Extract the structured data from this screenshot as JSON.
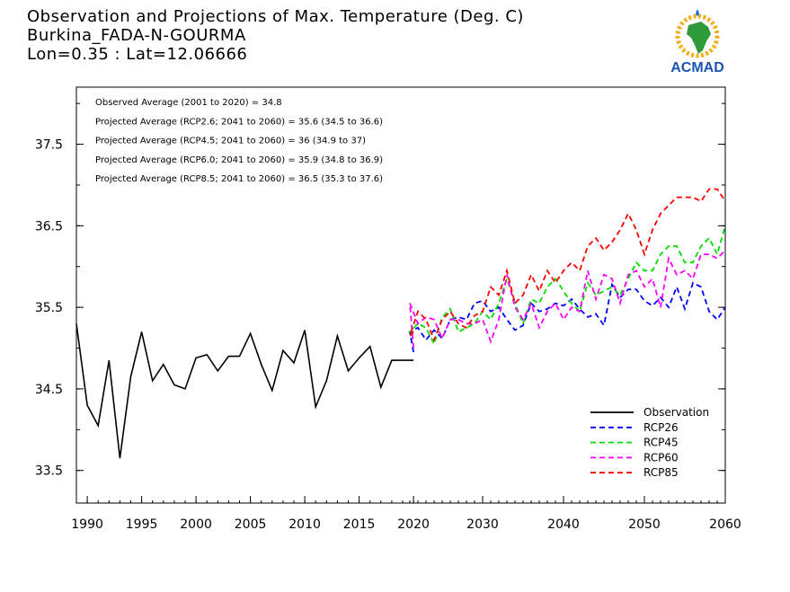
{
  "header": {
    "title_line1": "Observation and Projections of Max. Temperature (Deg. C)",
    "title_line2": "Burkina_FADA-N-GOURMA",
    "title_line3": "Lon=0.35 : Lat=12.06666"
  },
  "logo": {
    "text": "ACMAD",
    "icon": "africa-map-logo-icon"
  },
  "annotations": [
    "Observed Average (2001 to 2020) = 34.8",
    "Projected Average (RCP2.6; 2041 to 2060) = 35.6 (34.5 to 36.6)",
    "Projected Average (RCP4.5; 2041 to 2060) = 36 (34.9 to 37)",
    "Projected Average (RCP6.0; 2041 to 2060) = 35.9 (34.8 to 36.9)",
    "Projected Average (RCP8.5; 2041 to 2060) = 36.5 (35.3 to 37.6)"
  ],
  "chart_data": {
    "type": "line",
    "xlim": [
      1989,
      2060
    ],
    "ylim": [
      33.1,
      38.2
    ],
    "x_ticks": [
      1990,
      1995,
      2000,
      2005,
      2010,
      2015,
      2020,
      2030,
      2040,
      2050,
      2060
    ],
    "y_ticks": [
      33.5,
      34.5,
      35.5,
      36.5,
      37.5
    ],
    "legend_position": "bottom-right",
    "series": [
      {
        "name": "Observation",
        "color": "#000000",
        "dashed": false,
        "x": [
          1989,
          1990,
          1991,
          1992,
          1993,
          1994,
          1995,
          1996,
          1997,
          1998,
          1999,
          2000,
          2001,
          2002,
          2003,
          2004,
          2005,
          2006,
          2007,
          2008,
          2009,
          2010,
          2011,
          2012,
          2013,
          2014,
          2015,
          2016,
          2017,
          2018,
          2019,
          2020
        ],
        "y": [
          35.3,
          34.3,
          34.05,
          34.85,
          33.65,
          34.65,
          35.2,
          34.6,
          34.8,
          34.55,
          34.5,
          34.88,
          34.92,
          34.72,
          34.9,
          34.9,
          35.18,
          34.8,
          34.48,
          34.97,
          34.82,
          35.22,
          34.28,
          34.6,
          35.15,
          34.72,
          34.88,
          35.02,
          34.52,
          34.85,
          34.85,
          34.85
        ]
      },
      {
        "name": "RCP26",
        "color": "#0000ff",
        "dashed": true,
        "x": [
          2020,
          2021,
          2022,
          2023,
          2024,
          2025,
          2026,
          2027,
          2028,
          2029,
          2030,
          2031,
          2032,
          2033,
          2034,
          2035,
          2036,
          2037,
          2038,
          2039,
          2040,
          2041,
          2042,
          2043,
          2044,
          2045,
          2046,
          2047,
          2048,
          2049,
          2050,
          2051,
          2052,
          2053,
          2054,
          2055,
          2056,
          2057,
          2058,
          2059,
          2060
        ],
        "y": [
          34.95,
          35.2,
          35.25,
          35.1,
          35.22,
          35.12,
          35.35,
          35.38,
          35.35,
          35.55,
          35.58,
          35.45,
          35.5,
          35.35,
          35.22,
          35.28,
          35.55,
          35.45,
          35.48,
          35.55,
          35.52,
          35.6,
          35.48,
          35.38,
          35.42,
          35.28,
          35.78,
          35.62,
          35.72,
          35.72,
          35.58,
          35.52,
          35.62,
          35.5,
          35.75,
          35.48,
          35.8,
          35.75,
          35.45,
          35.35,
          35.5
        ]
      },
      {
        "name": "RCP45",
        "color": "#00dd00",
        "dashed": true,
        "x": [
          2020,
          2021,
          2022,
          2023,
          2024,
          2025,
          2026,
          2027,
          2028,
          2029,
          2030,
          2031,
          2032,
          2033,
          2034,
          2035,
          2036,
          2037,
          2038,
          2039,
          2040,
          2041,
          2042,
          2043,
          2044,
          2045,
          2046,
          2047,
          2048,
          2049,
          2050,
          2051,
          2052,
          2053,
          2054,
          2055,
          2056,
          2057,
          2058,
          2059,
          2060
        ],
        "y": [
          35.2,
          35.2,
          35.3,
          35.25,
          35.05,
          35.38,
          35.48,
          35.2,
          35.25,
          35.3,
          35.45,
          35.35,
          35.55,
          35.85,
          35.55,
          35.3,
          35.6,
          35.55,
          35.75,
          35.85,
          35.7,
          35.55,
          35.45,
          35.8,
          35.65,
          35.7,
          35.75,
          35.65,
          35.85,
          36.05,
          35.95,
          35.95,
          36.15,
          36.25,
          36.25,
          36.05,
          36.05,
          36.25,
          36.35,
          36.15,
          36.5
        ]
      },
      {
        "name": "RCP60",
        "color": "#ff00ff",
        "dashed": true,
        "x": [
          2020,
          2021,
          2022,
          2023,
          2024,
          2025,
          2026,
          2027,
          2028,
          2029,
          2030,
          2031,
          2032,
          2033,
          2034,
          2035,
          2036,
          2037,
          2038,
          2039,
          2040,
          2041,
          2042,
          2043,
          2044,
          2045,
          2046,
          2047,
          2048,
          2049,
          2050,
          2051,
          2052,
          2053,
          2054,
          2055,
          2056,
          2057,
          2058,
          2059,
          2060
        ],
        "y": [
          35.0,
          35.55,
          35.3,
          35.38,
          35.35,
          35.12,
          35.35,
          35.35,
          35.3,
          35.3,
          35.35,
          35.08,
          35.35,
          35.9,
          35.5,
          35.35,
          35.55,
          35.25,
          35.45,
          35.55,
          35.35,
          35.5,
          35.45,
          35.95,
          35.6,
          35.9,
          35.85,
          35.55,
          35.9,
          35.95,
          35.75,
          35.85,
          35.5,
          36.1,
          35.9,
          35.95,
          35.85,
          36.15,
          36.15,
          36.1,
          36.2
        ]
      },
      {
        "name": "RCP85",
        "color": "#ff0000",
        "dashed": true,
        "x": [
          2020,
          2021,
          2022,
          2023,
          2024,
          2025,
          2026,
          2027,
          2028,
          2029,
          2030,
          2031,
          2032,
          2033,
          2034,
          2035,
          2036,
          2037,
          2038,
          2039,
          2040,
          2041,
          2042,
          2043,
          2044,
          2045,
          2046,
          2047,
          2048,
          2049,
          2050,
          2051,
          2052,
          2053,
          2054,
          2055,
          2056,
          2057,
          2058,
          2059,
          2060
        ],
        "y": [
          35.2,
          35.15,
          35.45,
          35.35,
          35.1,
          35.35,
          35.45,
          35.3,
          35.25,
          35.4,
          35.45,
          35.75,
          35.65,
          35.95,
          35.55,
          35.65,
          35.9,
          35.7,
          35.95,
          35.8,
          35.95,
          36.05,
          35.95,
          36.25,
          36.35,
          36.2,
          36.3,
          36.45,
          36.65,
          36.45,
          36.15,
          36.45,
          36.65,
          36.75,
          36.85,
          36.85,
          36.85,
          36.8,
          36.95,
          36.95,
          36.8
        ]
      }
    ]
  }
}
